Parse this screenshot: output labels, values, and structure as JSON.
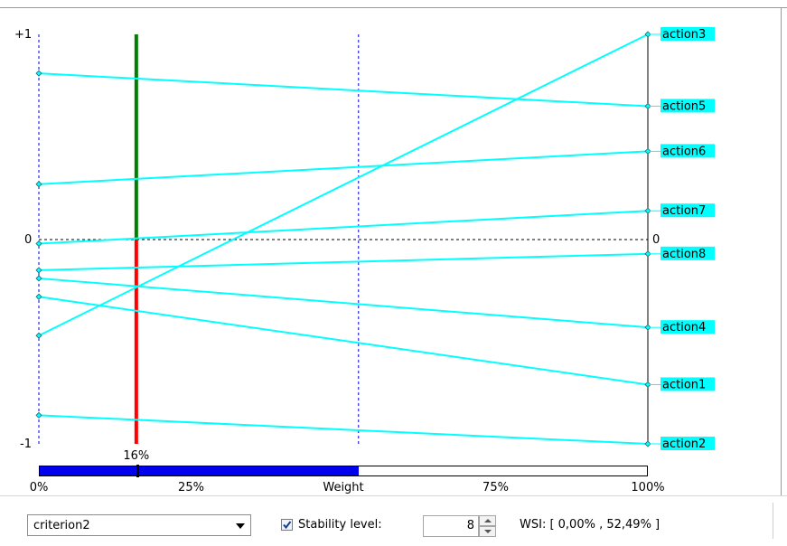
{
  "chart_data": {
    "type": "line",
    "yaxis_labels": {
      "top": "+1",
      "zero": "0",
      "bottom": "-1"
    },
    "right_zero_label": "0",
    "x_ticks": [
      "0%",
      "25%",
      "Weight",
      "75%",
      "100%"
    ],
    "current_weight_label": "16%",
    "current_weight": 16,
    "stability_interval": [
      0.0,
      52.49
    ],
    "colors": {
      "lines": "#00ffff",
      "positive": "#008000",
      "negative": "#ff0000",
      "bar": "#0000ee",
      "interval": "#0000cc"
    },
    "series": [
      {
        "name": "action3",
        "start": -0.47,
        "end": 1.0
      },
      {
        "name": "action5",
        "start": 0.81,
        "end": 0.65
      },
      {
        "name": "action6",
        "start": 0.27,
        "end": 0.43
      },
      {
        "name": "action7",
        "start": -0.02,
        "end": 0.14
      },
      {
        "name": "action8",
        "start": -0.15,
        "end": -0.07
      },
      {
        "name": "action4",
        "start": -0.19,
        "end": -0.43
      },
      {
        "name": "action1",
        "start": -0.28,
        "end": -0.71
      },
      {
        "name": "action2",
        "start": -0.86,
        "end": -1.0
      }
    ]
  },
  "controls": {
    "criterion": "criterion2",
    "stability_checkbox_checked": true,
    "stability_label": "Stability level:",
    "stability_value": "8",
    "wsi_text": "WSI: [ 0,00% , 52,49% ]"
  }
}
